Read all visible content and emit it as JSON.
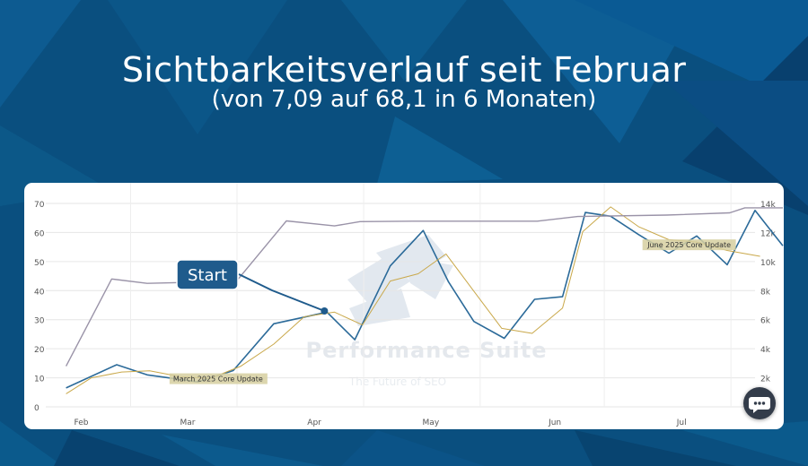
{
  "header": {
    "title": "Sichtbarkeitsverlauf seit Februar",
    "subtitle": "(von 7,09 auf 68,1 in 6 Monaten)"
  },
  "watermark": {
    "brand": "Performance Suite",
    "tagline": "The Future of SEO"
  },
  "chat_button": {
    "icon": "chat-bubble-icon"
  },
  "colors": {
    "background": "#0a4f7f",
    "visibility": "#2b6a99",
    "trend": "#c9a84a",
    "keywords": "#9a93a8",
    "callout": "#1f5b8c",
    "annotation_bg": "#d6cfa0"
  },
  "chart_data": {
    "type": "line",
    "x_ticks": [
      "Feb",
      "Mar",
      "Apr",
      "May",
      "Jun",
      "Jul"
    ],
    "x_tick_positions": [
      1.4,
      5.6,
      10.6,
      15.2,
      20.1,
      25.1
    ],
    "xlim": [
      0,
      28
    ],
    "ylim_left": [
      0,
      70
    ],
    "y_ticks_left": [
      0,
      10,
      20,
      30,
      40,
      50,
      60,
      70
    ],
    "ylim_right": [
      0,
      14000
    ],
    "y_ticks_right": [
      {
        "value": 2000,
        "label": "2k"
      },
      {
        "value": 4000,
        "label": "4k"
      },
      {
        "value": 6000,
        "label": "6k"
      },
      {
        "value": 8000,
        "label": "8k"
      },
      {
        "value": 10000,
        "label": "10k"
      },
      {
        "value": 12000,
        "label": "12k"
      },
      {
        "value": 14000,
        "label": "14k"
      }
    ],
    "grid": true,
    "series": [
      {
        "axis": "left",
        "points": [
          [
            0.8,
            6.5
          ],
          [
            2.8,
            14.5
          ],
          [
            4.0,
            11
          ],
          [
            6.0,
            8.6
          ],
          [
            7.4,
            12.5
          ],
          [
            9.0,
            28.6
          ],
          [
            11.1,
            32.6
          ],
          [
            12.2,
            23.1
          ],
          [
            13.6,
            48.5
          ],
          [
            14.9,
            60.7
          ],
          [
            15.9,
            43
          ],
          [
            16.9,
            29.4
          ],
          [
            18.1,
            23.6
          ],
          [
            19.3,
            37
          ],
          [
            20.4,
            37.9
          ],
          [
            21.3,
            66.9
          ],
          [
            22.3,
            65.6
          ],
          [
            23.4,
            59.3
          ],
          [
            24.6,
            52.9
          ],
          [
            25.7,
            58.8
          ],
          [
            26.9,
            48.9
          ],
          [
            28.0,
            67.6
          ],
          [
            29.1,
            55.4
          ]
        ]
      },
      {
        "axis": "left",
        "points": [
          [
            0.8,
            4.5
          ],
          [
            1.8,
            10
          ],
          [
            3.0,
            12
          ],
          [
            4.1,
            12.4
          ],
          [
            5.3,
            10.4
          ],
          [
            6.5,
            9.8
          ],
          [
            7.7,
            14
          ],
          [
            9.0,
            21.6
          ],
          [
            10.2,
            31
          ],
          [
            11.4,
            32.6
          ],
          [
            12.5,
            28.2
          ],
          [
            13.6,
            43.3
          ],
          [
            14.7,
            45.8
          ],
          [
            15.8,
            52.6
          ],
          [
            16.9,
            39.8
          ],
          [
            18.0,
            27
          ],
          [
            19.2,
            25.3
          ],
          [
            20.4,
            34
          ],
          [
            21.2,
            60.3
          ],
          [
            22.3,
            68.8
          ],
          [
            23.4,
            62
          ],
          [
            24.6,
            57.5
          ],
          [
            25.7,
            56.7
          ],
          [
            26.9,
            53.8
          ],
          [
            28.2,
            51.8
          ]
        ]
      },
      {
        "axis": "right",
        "points": [
          [
            0.8,
            2800
          ],
          [
            2.6,
            8800
          ],
          [
            4.0,
            8500
          ],
          [
            6.4,
            8600
          ],
          [
            7.6,
            8800
          ],
          [
            9.5,
            12800
          ],
          [
            11.4,
            12450
          ],
          [
            12.4,
            12750
          ],
          [
            14.5,
            12780
          ],
          [
            19.4,
            12780
          ],
          [
            21.0,
            13100
          ],
          [
            24.5,
            13200
          ],
          [
            27.0,
            13350
          ],
          [
            27.6,
            13700
          ],
          [
            29.1,
            13700
          ]
        ]
      }
    ],
    "annotations": [
      {
        "label": "March 2025 Core Update",
        "x": 6.8,
        "y": 10
      },
      {
        "label": "June 2025 Core Update",
        "x": 25.4,
        "y": 57
      },
      {
        "label": "Start",
        "x": 11.0,
        "y": 33
      }
    ]
  }
}
